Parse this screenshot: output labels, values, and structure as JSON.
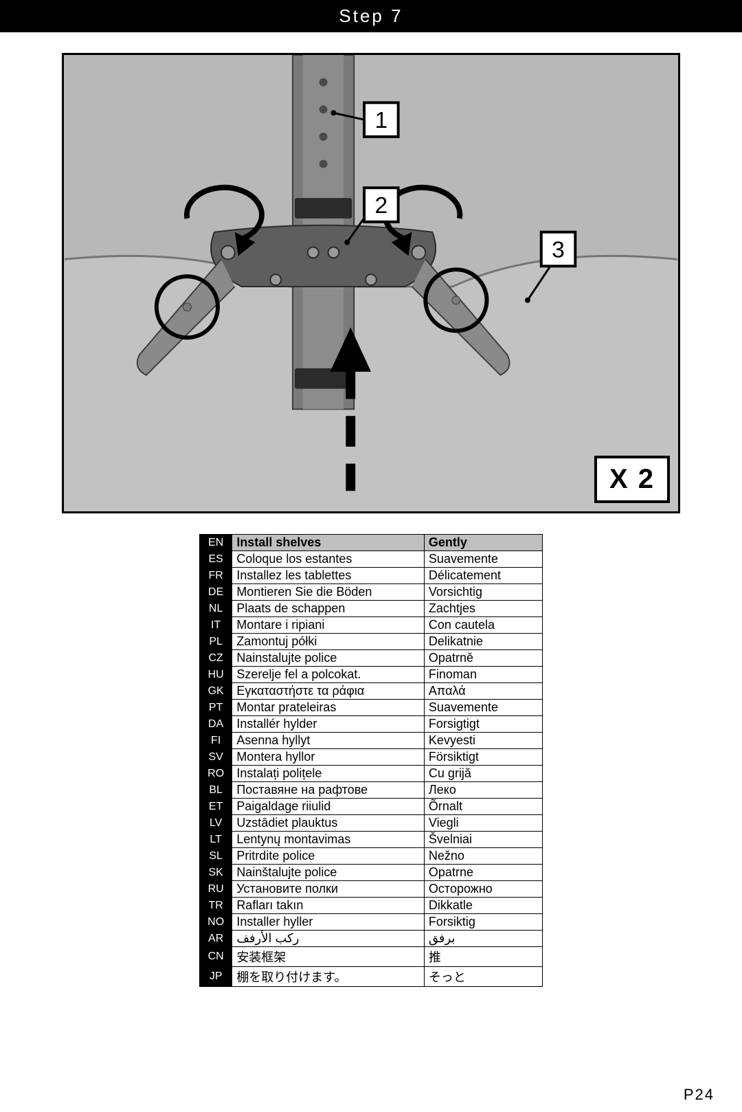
{
  "header": {
    "title": "Step 7"
  },
  "diagram": {
    "multiplier": "X 2",
    "callouts": [
      {
        "id": "1",
        "label": "1"
      },
      {
        "id": "2",
        "label": "2"
      },
      {
        "id": "3",
        "label": "3"
      }
    ]
  },
  "translations": {
    "columns": [
      "lang",
      "instruction",
      "manner"
    ],
    "header": {
      "lang": "EN",
      "instruction": "Install shelves",
      "manner": "Gently"
    },
    "rows": [
      {
        "lang": "ES",
        "instruction": "Coloque los estantes",
        "manner": "Suavemente"
      },
      {
        "lang": "FR",
        "instruction": "Installez les tablettes",
        "manner": "Délicatement"
      },
      {
        "lang": "DE",
        "instruction": "Montieren Sie die Böden",
        "manner": "Vorsichtig"
      },
      {
        "lang": "NL",
        "instruction": "Plaats de schappen",
        "manner": "Zachtjes"
      },
      {
        "lang": "IT",
        "instruction": "Montare i ripiani",
        "manner": "Con cautela"
      },
      {
        "lang": "PL",
        "instruction": "Zamontuj półki",
        "manner": "Delikatnie"
      },
      {
        "lang": "CZ",
        "instruction": "Nainstalujte police",
        "manner": "Opatrně"
      },
      {
        "lang": "HU",
        "instruction": "Szerelje fel a polcokat.",
        "manner": "Finoman"
      },
      {
        "lang": "GK",
        "instruction": "Εγκαταστήστε τα ράφια",
        "manner": "Απαλά"
      },
      {
        "lang": "PT",
        "instruction": "Montar prateleiras",
        "manner": "Suavemente"
      },
      {
        "lang": "DA",
        "instruction": "Installér hylder",
        "manner": "Forsigtigt"
      },
      {
        "lang": "FI",
        "instruction": "Asenna hyllyt",
        "manner": "Kevyesti"
      },
      {
        "lang": "SV",
        "instruction": "Montera hyllor",
        "manner": "Försiktigt"
      },
      {
        "lang": "RO",
        "instruction": "Instalați polițele",
        "manner": "Cu grijă"
      },
      {
        "lang": "BL",
        "instruction": "Поставяне на рафтове",
        "manner": "Леко"
      },
      {
        "lang": "ET",
        "instruction": "Paigaldage riiulid",
        "manner": "Õrnalt"
      },
      {
        "lang": "LV",
        "instruction": "Uzstādiet plauktus",
        "manner": "Viegli"
      },
      {
        "lang": "LT",
        "instruction": "Lentynų montavimas",
        "manner": "Švelniai"
      },
      {
        "lang": "SL",
        "instruction": "Pritrdite police",
        "manner": "Nežno"
      },
      {
        "lang": "SK",
        "instruction": "Nainštalujte police",
        "manner": "Opatrne"
      },
      {
        "lang": "RU",
        "instruction": "Установите полки",
        "manner": "Осторожно"
      },
      {
        "lang": "TR",
        "instruction": "Rafları takın",
        "manner": "Dikkatle"
      },
      {
        "lang": "NO",
        "instruction": "Installer hyller",
        "manner": "Forsiktig"
      },
      {
        "lang": "AR",
        "instruction": "ركب الأرفف",
        "manner": "برفق"
      },
      {
        "lang": "CN",
        "instruction": "安装框架",
        "manner": "推"
      },
      {
        "lang": "JP",
        "instruction": "棚を取り付けます。",
        "manner": "そっと"
      }
    ]
  },
  "page_number": "P24",
  "style": {
    "header_bg": "#000000",
    "header_fg": "#ffffff",
    "table_header_bg": "#bfbfbf",
    "lang_bg": "#000000",
    "lang_fg": "#ffffff",
    "border_color": "#000000",
    "diagram_bg": "#bdbdbd"
  }
}
